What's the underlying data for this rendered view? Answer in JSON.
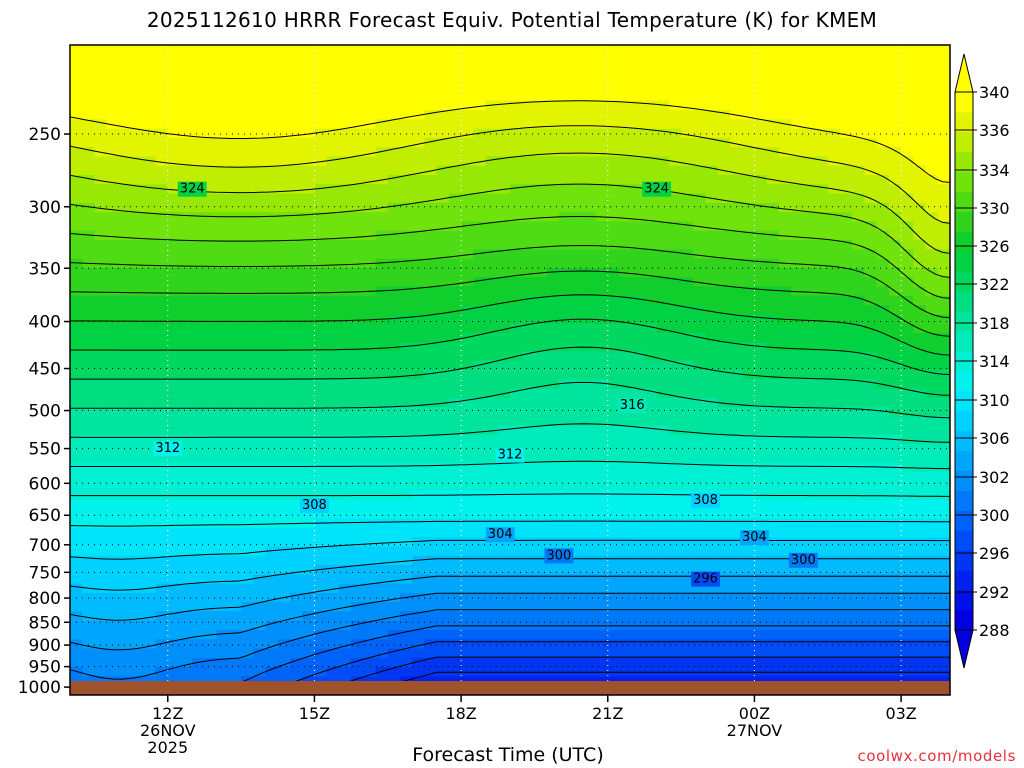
{
  "page": {
    "title": "2025112610 HRRR Forecast Equiv. Potential Temperature (K) for KMEM",
    "xlabel": "Forecast Time (UTC)",
    "credit": "coolwx.com/models"
  },
  "chart_data": {
    "type": "heatmap",
    "title": "2025112610 HRRR Forecast Equiv. Potential Temperature (K) for KMEM",
    "xlabel": "Forecast Time (UTC)",
    "ylabel": "",
    "units": "K",
    "x_ticks": [
      {
        "label": "12Z",
        "sub1": "26NOV",
        "sub2": "2025",
        "hour": 12
      },
      {
        "label": "15Z",
        "sub1": "",
        "sub2": "",
        "hour": 15
      },
      {
        "label": "18Z",
        "sub1": "",
        "sub2": "",
        "hour": 18
      },
      {
        "label": "21Z",
        "sub1": "",
        "sub2": "",
        "hour": 21
      },
      {
        "label": "00Z",
        "sub1": "27NOV",
        "sub2": "",
        "hour": 24
      },
      {
        "label": "03Z",
        "sub1": "",
        "sub2": "",
        "hour": 27
      }
    ],
    "xlim": [
      10,
      28
    ],
    "y_axis": "pressure (log scale, inverted)",
    "y_ticks": [
      250,
      300,
      350,
      400,
      450,
      500,
      550,
      600,
      650,
      700,
      750,
      800,
      850,
      900,
      950,
      1000
    ],
    "ylim": [
      200,
      1020
    ],
    "grid": true,
    "colorbar": {
      "ticks": [
        340,
        336,
        334,
        330,
        326,
        322,
        318,
        314,
        310,
        306,
        302,
        300,
        296,
        292,
        288
      ],
      "levels": [
        288,
        290,
        292,
        294,
        296,
        298,
        300,
        302,
        304,
        306,
        308,
        310,
        312,
        314,
        316,
        318,
        320,
        322,
        324,
        326,
        328,
        330,
        332,
        334,
        336,
        338,
        340
      ],
      "colors": [
        "#0000e0",
        "#0010e8",
        "#0022ee",
        "#0036f2",
        "#004cf6",
        "#0062f8",
        "#0078fa",
        "#008ffb",
        "#00a6fd",
        "#00bcfe",
        "#00d2ff",
        "#00e4fa",
        "#00f2ec",
        "#00f0d4",
        "#00ebba",
        "#00e59e",
        "#00de80",
        "#00d860",
        "#00d244",
        "#10cf2c",
        "#30d41c",
        "#50dc14",
        "#70e20c",
        "#98e806",
        "#c0ee02",
        "#e2f400",
        "#ffff00"
      ],
      "extend": "both"
    },
    "contour_labels": [
      {
        "value": 324,
        "hour": 12.5,
        "pressure": 286
      },
      {
        "value": 324,
        "hour": 22.0,
        "pressure": 286
      },
      {
        "value": 316,
        "hour": 21.5,
        "pressure": 492
      },
      {
        "value": 312,
        "hour": 12.0,
        "pressure": 548
      },
      {
        "value": 312,
        "hour": 19.0,
        "pressure": 557
      },
      {
        "value": 308,
        "hour": 15.0,
        "pressure": 632
      },
      {
        "value": 308,
        "hour": 23.0,
        "pressure": 624
      },
      {
        "value": 304,
        "hour": 18.8,
        "pressure": 680
      },
      {
        "value": 304,
        "hour": 24.0,
        "pressure": 685
      },
      {
        "value": 300,
        "hour": 20.0,
        "pressure": 717
      },
      {
        "value": 300,
        "hour": 25.0,
        "pressure": 725
      },
      {
        "value": 296,
        "hour": 23.0,
        "pressure": 760
      }
    ],
    "ground_bar_color": "#a0522d"
  }
}
